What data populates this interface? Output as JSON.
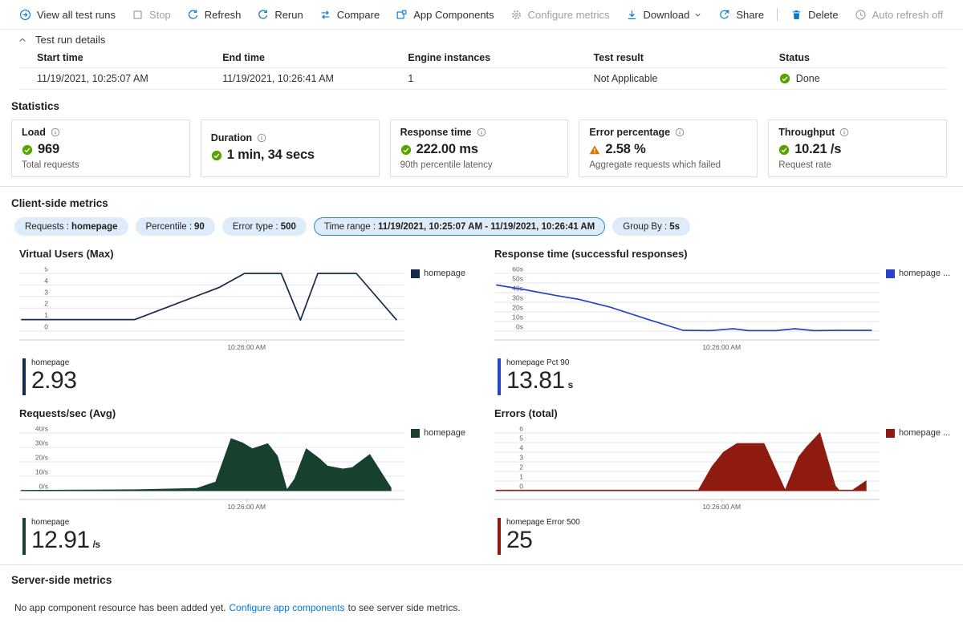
{
  "toolbar": {
    "items": [
      {
        "id": "view-all-test-runs",
        "label": "View all test runs",
        "icon": "view-all",
        "enabled": true
      },
      {
        "id": "stop",
        "label": "Stop",
        "icon": "stop",
        "enabled": false
      },
      {
        "id": "refresh",
        "label": "Refresh",
        "icon": "refresh",
        "enabled": true
      },
      {
        "id": "rerun",
        "label": "Rerun",
        "icon": "rerun",
        "enabled": true
      },
      {
        "id": "compare",
        "label": "Compare",
        "icon": "compare",
        "enabled": true
      },
      {
        "id": "app-components",
        "label": "App Components",
        "icon": "app-components",
        "enabled": true
      },
      {
        "id": "configure-metrics",
        "label": "Configure metrics",
        "icon": "gear",
        "enabled": false
      },
      {
        "id": "download",
        "label": "Download",
        "icon": "download",
        "enabled": true,
        "chevron": true
      },
      {
        "id": "share",
        "label": "Share",
        "icon": "share",
        "enabled": true
      },
      {
        "id": "delete",
        "label": "Delete",
        "icon": "delete",
        "enabled": true,
        "divider_before": true
      },
      {
        "id": "auto-refresh",
        "label": "Auto refresh off",
        "icon": "clock",
        "enabled": false
      }
    ]
  },
  "details": {
    "heading": "Test run details",
    "columns": [
      "Start time",
      "End time",
      "Engine instances",
      "Test result",
      "Status"
    ],
    "values": [
      "11/19/2021, 10:25:07 AM",
      "11/19/2021, 10:26:41 AM",
      "1",
      "Not Applicable",
      "Done"
    ],
    "status_column_index": 4
  },
  "statistics": {
    "heading": "Statistics",
    "cards": [
      {
        "title": "Load",
        "status": "success",
        "value": "969",
        "caption": "Total requests"
      },
      {
        "title": "Duration",
        "status": "success",
        "value": "1 min, 34 secs",
        "caption": ""
      },
      {
        "title": "Response time",
        "status": "success",
        "value": "222.00 ms",
        "caption": "90th percentile latency"
      },
      {
        "title": "Error percentage",
        "status": "warning",
        "value": "2.58 %",
        "caption": "Aggregate requests which failed"
      },
      {
        "title": "Throughput",
        "status": "success",
        "value": "10.21 /s",
        "caption": "Request rate"
      }
    ]
  },
  "client_metrics": {
    "heading": "Client-side metrics",
    "filters": [
      {
        "id": "requests",
        "label": "Requests",
        "value": "homepage",
        "selected": false
      },
      {
        "id": "percentile",
        "label": "Percentile",
        "value": "90",
        "selected": false
      },
      {
        "id": "error-type",
        "label": "Error type",
        "value": "500",
        "selected": false
      },
      {
        "id": "time-range",
        "label": "Time range",
        "value": "11/19/2021, 10:25:07 AM - 11/19/2021, 10:26:41 AM",
        "selected": true
      },
      {
        "id": "group-by",
        "label": "Group By",
        "value": "5s",
        "selected": false
      }
    ]
  },
  "chart_data": [
    {
      "name": "virtual-users",
      "type": "line",
      "title": "Virtual Users (Max)",
      "color": "#15294a",
      "legend": "homepage",
      "ylim": [
        0,
        5
      ],
      "yticks": [
        [
          5,
          "5"
        ],
        [
          4,
          "4"
        ],
        [
          3,
          "3"
        ],
        [
          2,
          "2"
        ],
        [
          1,
          "1"
        ],
        [
          0,
          "0"
        ]
      ],
      "x_tick": {
        "label": "10:26:00 AM",
        "pos": 59
      },
      "points": [
        [
          0.5,
          1
        ],
        [
          30,
          1
        ],
        [
          52,
          3.8
        ],
        [
          58.5,
          5
        ],
        [
          68,
          5
        ],
        [
          73,
          0.95
        ],
        [
          77.5,
          5
        ],
        [
          87.5,
          5
        ],
        [
          98,
          0.95
        ]
      ],
      "summary": {
        "label": "homepage",
        "value": "2.93",
        "unit": ""
      }
    },
    {
      "name": "response-time",
      "type": "line",
      "title": "Response time (successful responses)",
      "color": "#2644c7",
      "legend": "homepage ...",
      "ylim": [
        0,
        60
      ],
      "yticks": [
        [
          60,
          "60s"
        ],
        [
          50,
          "50s"
        ],
        [
          40,
          "40s"
        ],
        [
          30,
          "30s"
        ],
        [
          20,
          "20s"
        ],
        [
          10,
          "10s"
        ],
        [
          0,
          "0s"
        ]
      ],
      "x_tick": {
        "label": "10:26:00 AM",
        "pos": 59
      },
      "points": [
        [
          0.5,
          48
        ],
        [
          8,
          43
        ],
        [
          16,
          37
        ],
        [
          22,
          33
        ],
        [
          30,
          25
        ],
        [
          40,
          12
        ],
        [
          49,
          0.8
        ],
        [
          56,
          0.5
        ],
        [
          62,
          2.5
        ],
        [
          66,
          0.5
        ],
        [
          73,
          0.5
        ],
        [
          78,
          2.5
        ],
        [
          83,
          0.5
        ],
        [
          90,
          0.8
        ],
        [
          98,
          0.8
        ]
      ],
      "summary": {
        "label": "homepage Pct 90",
        "value": "13.81",
        "unit": "s"
      }
    },
    {
      "name": "requests-per-sec",
      "type": "area",
      "title": "Requests/sec (Avg)",
      "color": "#17412e",
      "legend": "homepage",
      "ylim": [
        0,
        40
      ],
      "yticks": [
        [
          40,
          "40/s"
        ],
        [
          30,
          "30/s"
        ],
        [
          20,
          "20/s"
        ],
        [
          10,
          "10/s"
        ],
        [
          0,
          "0/s"
        ]
      ],
      "x_tick": {
        "label": "10:26:00 AM",
        "pos": 59
      },
      "points": [
        [
          0.5,
          0.2
        ],
        [
          30,
          0.6
        ],
        [
          46,
          1.5
        ],
        [
          51,
          6
        ],
        [
          55,
          36
        ],
        [
          58,
          33
        ],
        [
          60.5,
          29
        ],
        [
          64.5,
          32.5
        ],
        [
          67,
          24
        ],
        [
          69.5,
          0.5
        ],
        [
          71.5,
          8
        ],
        [
          74.5,
          29
        ],
        [
          78,
          22
        ],
        [
          80,
          17
        ],
        [
          84,
          15
        ],
        [
          86.5,
          16
        ],
        [
          91,
          25
        ],
        [
          96,
          4
        ],
        [
          96.5,
          2
        ]
      ],
      "summary": {
        "label": "homepage",
        "value": "12.91",
        "unit": "/s"
      }
    },
    {
      "name": "errors",
      "type": "area",
      "title": "Errors (total)",
      "color": "#8e1a10",
      "legend": "homepage ...",
      "ylim": [
        0,
        6
      ],
      "yticks": [
        [
          6,
          "6"
        ],
        [
          5,
          "5"
        ],
        [
          4,
          "4"
        ],
        [
          3,
          "3"
        ],
        [
          2,
          "2"
        ],
        [
          1,
          "1"
        ],
        [
          0,
          "0"
        ]
      ],
      "x_tick": {
        "label": "10:26:00 AM",
        "pos": 59
      },
      "points": [
        [
          0.5,
          0.05
        ],
        [
          53,
          0.05
        ],
        [
          56.5,
          2.5
        ],
        [
          59.5,
          4
        ],
        [
          63,
          4.9
        ],
        [
          70,
          4.9
        ],
        [
          75.5,
          0.05
        ],
        [
          79,
          3.5
        ],
        [
          81,
          4.5
        ],
        [
          84.5,
          6
        ],
        [
          88.5,
          0.5
        ],
        [
          89.5,
          0.05
        ],
        [
          93,
          0.05
        ],
        [
          96.5,
          1
        ]
      ],
      "summary": {
        "label": "homepage Error 500",
        "value": "25",
        "unit": ""
      }
    }
  ],
  "server_metrics": {
    "heading": "Server-side metrics",
    "message_before": "No app component resource has been added yet.",
    "link_text": "Configure app components",
    "message_after": "to see server side metrics."
  },
  "colors": {
    "accent": "#0078d4",
    "success": "#57a300",
    "warning": "#dd7400",
    "pill_bg": "#deecf9",
    "pill_selected_border": "#2f87d8"
  }
}
